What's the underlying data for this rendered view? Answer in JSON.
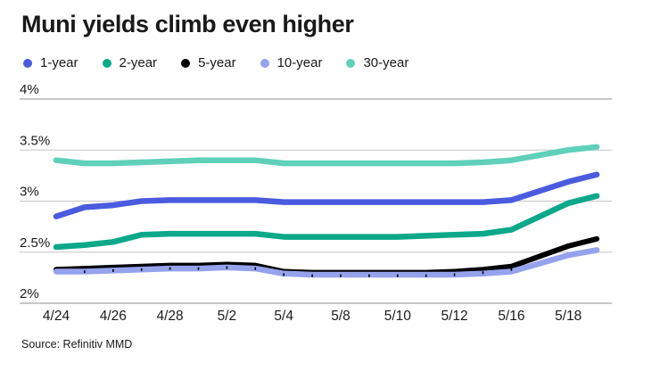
{
  "chart_data": {
    "type": "line",
    "title": "Muni yields climb even higher",
    "source": "Source: Refinitiv MMD",
    "legend_position": "top",
    "grid": true,
    "x": [
      "4/24",
      "4/25",
      "4/26",
      "4/27",
      "4/28",
      "5/1",
      "5/2",
      "5/3",
      "5/4",
      "5/5",
      "5/8",
      "5/9",
      "5/10",
      "5/11",
      "5/12",
      "5/15",
      "5/16",
      "5/17",
      "5/18",
      "5/19"
    ],
    "x_tick_indices": [
      0,
      2,
      4,
      6,
      8,
      10,
      12,
      14,
      16,
      18
    ],
    "x_tick_labels": [
      "4/24",
      "4/26",
      "4/28",
      "5/2",
      "5/4",
      "5/8",
      "5/10",
      "5/12",
      "5/16",
      "5/18"
    ],
    "y_axis": {
      "min": 2,
      "max": 4,
      "unit": "%",
      "tick_values": [
        4,
        3.5,
        3,
        2.5,
        2
      ],
      "tick_labels": [
        "4%",
        "3.5%",
        "3%",
        "2.5%",
        "2%"
      ]
    },
    "colors": {
      "grid": "#c6c6c6",
      "axis_emphasis": "#8f8f8f",
      "text": "#1a1a1a"
    },
    "series": [
      {
        "name": "1-year",
        "color": "#4a5be0",
        "marker": "none",
        "values": [
          2.85,
          2.94,
          2.96,
          3.0,
          3.01,
          3.01,
          3.01,
          3.01,
          2.99,
          2.99,
          2.99,
          2.99,
          2.99,
          2.99,
          2.99,
          2.99,
          3.01,
          3.1,
          3.19,
          3.26
        ]
      },
      {
        "name": "2-year",
        "color": "#0ba88a",
        "marker": "none",
        "values": [
          2.55,
          2.57,
          2.6,
          2.67,
          2.68,
          2.68,
          2.68,
          2.68,
          2.65,
          2.65,
          2.65,
          2.65,
          2.65,
          2.66,
          2.67,
          2.68,
          2.72,
          2.85,
          2.98,
          3.05
        ]
      },
      {
        "name": "5-year",
        "color": "#000000",
        "marker": "tick",
        "values": [
          2.33,
          2.34,
          2.35,
          2.36,
          2.37,
          2.37,
          2.38,
          2.37,
          2.31,
          2.3,
          2.3,
          2.3,
          2.3,
          2.3,
          2.31,
          2.33,
          2.36,
          2.46,
          2.56,
          2.63
        ]
      },
      {
        "name": "10-year",
        "color": "#95a2ec",
        "marker": "none",
        "values": [
          2.31,
          2.31,
          2.32,
          2.33,
          2.34,
          2.34,
          2.35,
          2.34,
          2.29,
          2.28,
          2.28,
          2.28,
          2.28,
          2.28,
          2.28,
          2.29,
          2.31,
          2.39,
          2.47,
          2.52
        ]
      },
      {
        "name": "30-year",
        "color": "#5fd0ba",
        "marker": "none",
        "values": [
          3.4,
          3.37,
          3.37,
          3.38,
          3.39,
          3.4,
          3.4,
          3.4,
          3.37,
          3.37,
          3.37,
          3.37,
          3.37,
          3.37,
          3.37,
          3.38,
          3.4,
          3.45,
          3.5,
          3.53
        ]
      }
    ]
  }
}
